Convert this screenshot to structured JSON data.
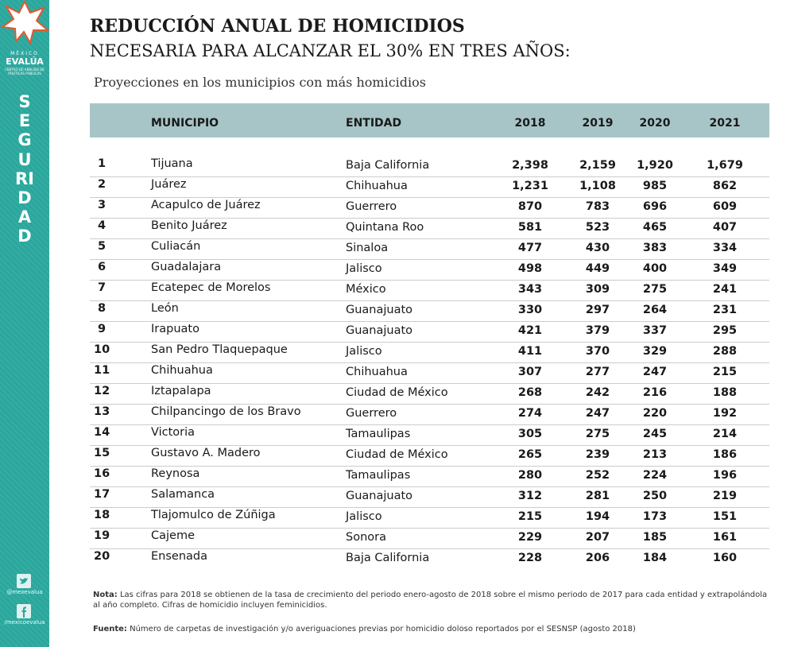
{
  "sidebar": {
    "brand_top": "MÉXICO",
    "brand": "EVALÚA",
    "brand_sub": "CENTRO DE ANÁLISIS DE POLÍTICAS PÚBLICAS",
    "section": "SEGURIDAD",
    "twitter": "@mexevalua",
    "facebook": "/mexicoevalua"
  },
  "header": {
    "title": "REDUCCIÓN ANUAL DE HOMICIDIOS",
    "subtitle": "NECESARIA PARA ALCANZAR EL 30% EN TRES AÑOS:",
    "caption": "Proyecciones en los municipios con más homicidios"
  },
  "table": {
    "columns": [
      "MUNICIPIO",
      "ENTIDAD",
      "2018",
      "2019",
      "2020",
      "2021"
    ],
    "rows": [
      [
        "1",
        "Tijuana",
        "Baja California",
        "2,398",
        "2,159",
        "1,920",
        "1,679"
      ],
      [
        "2",
        "Juárez",
        "Chihuahua",
        "1,231",
        "1,108",
        "985",
        "862"
      ],
      [
        "3",
        "Acapulco de Juárez",
        "Guerrero",
        "870",
        "783",
        "696",
        "609"
      ],
      [
        "4",
        "Benito Juárez",
        "Quintana Roo",
        "581",
        "523",
        "465",
        "407"
      ],
      [
        "5",
        "Culiacán",
        "Sinaloa",
        "477",
        "430",
        "383",
        "334"
      ],
      [
        "6",
        "Guadalajara",
        "Jalisco",
        "498",
        "449",
        "400",
        "349"
      ],
      [
        "7",
        "Ecatepec de Morelos",
        "México",
        "343",
        "309",
        "275",
        "241"
      ],
      [
        "8",
        "León",
        "Guanajuato",
        "330",
        "297",
        "264",
        "231"
      ],
      [
        "9",
        "Irapuato",
        "Guanajuato",
        "421",
        "379",
        "337",
        "295"
      ],
      [
        "10",
        "San Pedro Tlaquepaque",
        "Jalisco",
        "411",
        "370",
        "329",
        "288"
      ],
      [
        "11",
        "Chihuahua",
        "Chihuahua",
        "307",
        "277",
        "247",
        "215"
      ],
      [
        "12",
        "Iztapalapa",
        "Ciudad de México",
        "268",
        "242",
        "216",
        "188"
      ],
      [
        "13",
        "Chilpancingo de los Bravo",
        "Guerrero",
        "274",
        "247",
        "220",
        "192"
      ],
      [
        "14",
        "Victoria",
        "Tamaulipas",
        "305",
        "275",
        "245",
        "214"
      ],
      [
        "15",
        "Gustavo A. Madero",
        "Ciudad de México",
        "265",
        "239",
        "213",
        "186"
      ],
      [
        "16",
        "Reynosa",
        "Tamaulipas",
        "280",
        "252",
        "224",
        "196"
      ],
      [
        "17",
        "Salamanca",
        "Guanajuato",
        "312",
        "281",
        "250",
        "219"
      ],
      [
        "18",
        "Tlajomulco de Zúñiga",
        "Jalisco",
        "215",
        "194",
        "173",
        "151"
      ],
      [
        "19",
        "Cajeme",
        "Sonora",
        "229",
        "207",
        "185",
        "161"
      ],
      [
        "20",
        "Ensenada",
        "Baja California",
        "228",
        "206",
        "184",
        "160"
      ]
    ]
  },
  "notes": {
    "note_label": "Nota:",
    "note": "Las cifras para 2018 se obtienen de la tasa de crecimiento del periodo enero-agosto de 2018 sobre el mismo periodo de 2017 para cada entidad y extrapolándola al año completo. Cifras de homicidio incluyen feminicidios.",
    "source_label": "Fuente:",
    "source": "Número de carpetas de investigación y/o averiguaciones previas por homicidio doloso reportados por el SESNSP (agosto 2018)"
  }
}
